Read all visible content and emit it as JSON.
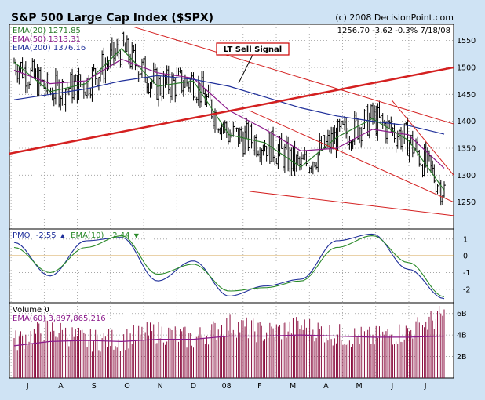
{
  "header": {
    "title": "S&P 500 Large Cap Index ($SPX)",
    "source": "(c) 2008 DecisionPoint.com",
    "quote": "1256.70  -3.62  -0.3%  7/18/08"
  },
  "colors": {
    "background": "#cfe3f4",
    "panel": "#ffffff",
    "price_bars": "#000000",
    "ema20": "#2a7a2a",
    "ema50": "#8b1a8b",
    "ema200": "#1f2f9a",
    "trendline": "#d42020",
    "pmo": "#1f2f9a",
    "pmo_signal": "#2a8a2a",
    "zero_line": "#c8861a",
    "volume": "#8b1040",
    "volume_ema": "#8b1a8b",
    "callout_border": "#cc0000"
  },
  "price_panel": {
    "legend": [
      {
        "label": "EMA(20) 1271.85",
        "color": "#2a7a2a"
      },
      {
        "label": "EMA(50) 1313.31",
        "color": "#8b1a8b"
      },
      {
        "label": "EMA(200) 1376.16",
        "color": "#1f2f9a"
      }
    ],
    "annotation": "LT Sell Signal",
    "yticks": [
      "1550",
      "1500",
      "1450",
      "1400",
      "1350",
      "1300",
      "1250"
    ]
  },
  "pmo_panel": {
    "pmo_label": "PMO",
    "pmo_value": "-2.55",
    "pmo_arrow": "▲",
    "ema_label": "EMA(10)",
    "ema_value": "-2.44",
    "ema_arrow": "▼",
    "yticks": [
      "1",
      "0",
      "-1",
      "-2"
    ]
  },
  "volume_panel": {
    "label": "Volume  0",
    "ema_label": "EMA(60) 3,897,865,216",
    "yticks": [
      "6B",
      "4B",
      "2B"
    ]
  },
  "x_axis": {
    "months": [
      "J",
      "A",
      "S",
      "O",
      "N",
      "D",
      "08",
      "F",
      "M",
      "A",
      "M",
      "J",
      "J"
    ]
  },
  "chart_data": [
    {
      "type": "line",
      "title": "S&P 500 Large Cap Index ($SPX)",
      "x": [
        "2007-07",
        "2007-08",
        "2007-09",
        "2007-10",
        "2007-11",
        "2007-12",
        "2008-01",
        "2008-02",
        "2008-03",
        "2008-04",
        "2008-05",
        "2008-06",
        "2008-07"
      ],
      "series": [
        {
          "name": "EMA(20)",
          "values": [
            1510,
            1455,
            1470,
            1535,
            1465,
            1475,
            1375,
            1360,
            1315,
            1370,
            1405,
            1365,
            1272
          ]
        },
        {
          "name": "EMA(50)",
          "values": [
            1495,
            1470,
            1475,
            1515,
            1490,
            1480,
            1420,
            1385,
            1345,
            1350,
            1385,
            1375,
            1313
          ]
        },
        {
          "name": "EMA(200)",
          "values": [
            1440,
            1450,
            1460,
            1475,
            1485,
            1478,
            1465,
            1445,
            1425,
            1410,
            1400,
            1392,
            1376
          ]
        }
      ],
      "annotations": [
        "LT Sell Signal"
      ],
      "ylim": [
        1200,
        1580
      ]
    },
    {
      "type": "line",
      "title": "PMO",
      "x": [
        "2007-07",
        "2007-08",
        "2007-09",
        "2007-10",
        "2007-11",
        "2007-12",
        "2008-01",
        "2008-02",
        "2008-03",
        "2008-04",
        "2008-05",
        "2008-06",
        "2008-07"
      ],
      "series": [
        {
          "name": "PMO",
          "values": [
            0.8,
            -1.2,
            0.9,
            1.1,
            -1.5,
            -0.3,
            -2.4,
            -1.8,
            -1.4,
            0.9,
            1.3,
            -0.8,
            -2.55
          ]
        },
        {
          "name": "EMA(10)",
          "values": [
            0.5,
            -1.0,
            0.5,
            1.2,
            -1.1,
            -0.5,
            -2.1,
            -1.9,
            -1.5,
            0.5,
            1.2,
            -0.4,
            -2.44
          ]
        }
      ],
      "ylim": [
        -2.8,
        1.6
      ]
    },
    {
      "type": "bar",
      "title": "Volume",
      "x": [
        "2007-07",
        "2007-08",
        "2007-09",
        "2007-10",
        "2007-11",
        "2007-12",
        "2008-01",
        "2008-02",
        "2008-03",
        "2008-04",
        "2008-05",
        "2008-06",
        "2008-07"
      ],
      "series": [
        {
          "name": "Volume",
          "values": [
            3.4,
            4.6,
            3.5,
            3.6,
            4.3,
            3.6,
            5.0,
            4.2,
            4.8,
            4.0,
            3.7,
            4.3,
            5.9
          ]
        },
        {
          "name": "EMA(60)",
          "values": [
            3.0,
            3.4,
            3.5,
            3.4,
            3.6,
            3.6,
            3.9,
            3.9,
            4.0,
            3.9,
            3.8,
            3.8,
            3.9
          ]
        }
      ],
      "ylim": [
        0,
        7
      ]
    }
  ]
}
